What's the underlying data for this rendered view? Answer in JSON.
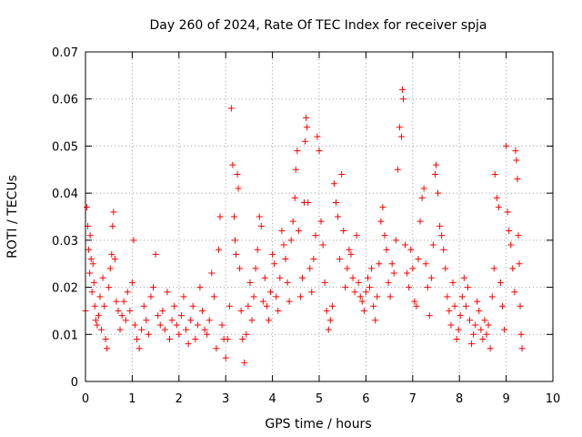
{
  "chart_data": {
    "type": "scatter",
    "title": "Day 260 of 2024, Rate Of TEC Index for receiver spja",
    "xlabel": "GPS time / hours",
    "ylabel": "ROTI / TECUs",
    "xlim": [
      0,
      10
    ],
    "ylim": [
      0,
      0.07
    ],
    "xticks": [
      0,
      1,
      2,
      3,
      4,
      5,
      6,
      7,
      8,
      9,
      10
    ],
    "yticks": [
      0,
      0.01,
      0.02,
      0.03,
      0.04,
      0.05,
      0.06,
      0.07
    ],
    "ytick_labels": [
      "0",
      "0.01",
      "0.02",
      "0.03",
      "0.04",
      "0.05",
      "0.06",
      "0.07"
    ],
    "grid": true,
    "marker": "+",
    "marker_color": "#ff0000",
    "series": [
      {
        "name": "ROTI",
        "points": [
          [
            0.0,
            0.015
          ],
          [
            0.03,
            0.037
          ],
          [
            0.05,
            0.033
          ],
          [
            0.07,
            0.028
          ],
          [
            0.09,
            0.023
          ],
          [
            0.1,
            0.031
          ],
          [
            0.12,
            0.026
          ],
          [
            0.14,
            0.019
          ],
          [
            0.16,
            0.025
          ],
          [
            0.18,
            0.021
          ],
          [
            0.2,
            0.016
          ],
          [
            0.22,
            0.013
          ],
          [
            0.25,
            0.012
          ],
          [
            0.28,
            0.014
          ],
          [
            0.31,
            0.018
          ],
          [
            0.34,
            0.011
          ],
          [
            0.37,
            0.022
          ],
          [
            0.4,
            0.016
          ],
          [
            0.43,
            0.009
          ],
          [
            0.46,
            0.007
          ],
          [
            0.5,
            0.02
          ],
          [
            0.53,
            0.024
          ],
          [
            0.56,
            0.027
          ],
          [
            0.58,
            0.033
          ],
          [
            0.6,
            0.036
          ],
          [
            0.63,
            0.026
          ],
          [
            0.66,
            0.017
          ],
          [
            0.7,
            0.015
          ],
          [
            0.74,
            0.011
          ],
          [
            0.78,
            0.014
          ],
          [
            0.82,
            0.017
          ],
          [
            0.86,
            0.013
          ],
          [
            0.9,
            0.019
          ],
          [
            0.95,
            0.015
          ],
          [
            1.0,
            0.021
          ],
          [
            1.03,
            0.03
          ],
          [
            1.06,
            0.012
          ],
          [
            1.1,
            0.009
          ],
          [
            1.15,
            0.007
          ],
          [
            1.2,
            0.011
          ],
          [
            1.25,
            0.016
          ],
          [
            1.3,
            0.013
          ],
          [
            1.35,
            0.01
          ],
          [
            1.4,
            0.018
          ],
          [
            1.45,
            0.02
          ],
          [
            1.5,
            0.027
          ],
          [
            1.55,
            0.014
          ],
          [
            1.6,
            0.012
          ],
          [
            1.65,
            0.015
          ],
          [
            1.7,
            0.011
          ],
          [
            1.75,
            0.019
          ],
          [
            1.8,
            0.009
          ],
          [
            1.85,
            0.013
          ],
          [
            1.9,
            0.016
          ],
          [
            1.95,
            0.012
          ],
          [
            2.0,
            0.01
          ],
          [
            2.05,
            0.014
          ],
          [
            2.1,
            0.018
          ],
          [
            2.15,
            0.011
          ],
          [
            2.2,
            0.008
          ],
          [
            2.25,
            0.013
          ],
          [
            2.3,
            0.016
          ],
          [
            2.35,
            0.009
          ],
          [
            2.4,
            0.012
          ],
          [
            2.45,
            0.02
          ],
          [
            2.5,
            0.015
          ],
          [
            2.55,
            0.011
          ],
          [
            2.6,
            0.01
          ],
          [
            2.65,
            0.013
          ],
          [
            2.7,
            0.023
          ],
          [
            2.75,
            0.018
          ],
          [
            2.8,
            0.007
          ],
          [
            2.85,
            0.028
          ],
          [
            2.88,
            0.035
          ],
          [
            2.92,
            0.012
          ],
          [
            2.96,
            0.009
          ],
          [
            3.0,
            0.005
          ],
          [
            3.04,
            0.009
          ],
          [
            3.08,
            0.016
          ],
          [
            3.12,
            0.058
          ],
          [
            3.15,
            0.046
          ],
          [
            3.18,
            0.035
          ],
          [
            3.2,
            0.03
          ],
          [
            3.22,
            0.027
          ],
          [
            3.25,
            0.044
          ],
          [
            3.27,
            0.041
          ],
          [
            3.3,
            0.024
          ],
          [
            3.33,
            0.015
          ],
          [
            3.36,
            0.009
          ],
          [
            3.4,
            0.004
          ],
          [
            3.44,
            0.01
          ],
          [
            3.48,
            0.016
          ],
          [
            3.52,
            0.021
          ],
          [
            3.56,
            0.013
          ],
          [
            3.6,
            0.018
          ],
          [
            3.64,
            0.024
          ],
          [
            3.68,
            0.028
          ],
          [
            3.72,
            0.035
          ],
          [
            3.76,
            0.033
          ],
          [
            3.8,
            0.017
          ],
          [
            3.84,
            0.022
          ],
          [
            3.88,
            0.016
          ],
          [
            3.92,
            0.013
          ],
          [
            3.96,
            0.019
          ],
          [
            4.0,
            0.027
          ],
          [
            4.04,
            0.025
          ],
          [
            4.08,
            0.018
          ],
          [
            4.12,
            0.015
          ],
          [
            4.16,
            0.022
          ],
          [
            4.2,
            0.032
          ],
          [
            4.24,
            0.029
          ],
          [
            4.28,
            0.026
          ],
          [
            4.32,
            0.021
          ],
          [
            4.36,
            0.017
          ],
          [
            4.4,
            0.03
          ],
          [
            4.44,
            0.034
          ],
          [
            4.48,
            0.039
          ],
          [
            4.5,
            0.045
          ],
          [
            4.53,
            0.049
          ],
          [
            4.56,
            0.032
          ],
          [
            4.6,
            0.018
          ],
          [
            4.64,
            0.022
          ],
          [
            4.68,
            0.038
          ],
          [
            4.7,
            0.051
          ],
          [
            4.72,
            0.056
          ],
          [
            4.74,
            0.054
          ],
          [
            4.76,
            0.038
          ],
          [
            4.8,
            0.024
          ],
          [
            4.84,
            0.019
          ],
          [
            4.88,
            0.026
          ],
          [
            4.92,
            0.031
          ],
          [
            4.96,
            0.052
          ],
          [
            5.0,
            0.049
          ],
          [
            5.04,
            0.034
          ],
          [
            5.08,
            0.029
          ],
          [
            5.12,
            0.021
          ],
          [
            5.16,
            0.015
          ],
          [
            5.2,
            0.011
          ],
          [
            5.24,
            0.013
          ],
          [
            5.28,
            0.016
          ],
          [
            5.32,
            0.042
          ],
          [
            5.36,
            0.038
          ],
          [
            5.4,
            0.035
          ],
          [
            5.44,
            0.026
          ],
          [
            5.48,
            0.044
          ],
          [
            5.52,
            0.032
          ],
          [
            5.56,
            0.02
          ],
          [
            5.6,
            0.024
          ],
          [
            5.64,
            0.028
          ],
          [
            5.68,
            0.027
          ],
          [
            5.72,
            0.022
          ],
          [
            5.76,
            0.019
          ],
          [
            5.8,
            0.031
          ],
          [
            5.84,
            0.021
          ],
          [
            5.88,
            0.018
          ],
          [
            5.92,
            0.017
          ],
          [
            5.96,
            0.015
          ],
          [
            6.0,
            0.019
          ],
          [
            6.04,
            0.022
          ],
          [
            6.08,
            0.02
          ],
          [
            6.12,
            0.024
          ],
          [
            6.16,
            0.016
          ],
          [
            6.2,
            0.013
          ],
          [
            6.24,
            0.018
          ],
          [
            6.28,
            0.025
          ],
          [
            6.32,
            0.034
          ],
          [
            6.36,
            0.037
          ],
          [
            6.4,
            0.031
          ],
          [
            6.44,
            0.028
          ],
          [
            6.48,
            0.021
          ],
          [
            6.52,
            0.018
          ],
          [
            6.56,
            0.025
          ],
          [
            6.6,
            0.023
          ],
          [
            6.64,
            0.03
          ],
          [
            6.68,
            0.045
          ],
          [
            6.72,
            0.054
          ],
          [
            6.76,
            0.052
          ],
          [
            6.78,
            0.062
          ],
          [
            6.8,
            0.06
          ],
          [
            6.84,
            0.029
          ],
          [
            6.88,
            0.023
          ],
          [
            6.92,
            0.02
          ],
          [
            6.96,
            0.028
          ],
          [
            7.0,
            0.024
          ],
          [
            7.04,
            0.017
          ],
          [
            7.08,
            0.016
          ],
          [
            7.12,
            0.026
          ],
          [
            7.16,
            0.034
          ],
          [
            7.2,
            0.039
          ],
          [
            7.24,
            0.041
          ],
          [
            7.28,
            0.025
          ],
          [
            7.32,
            0.02
          ],
          [
            7.36,
            0.014
          ],
          [
            7.4,
            0.022
          ],
          [
            7.44,
            0.029
          ],
          [
            7.48,
            0.044
          ],
          [
            7.5,
            0.046
          ],
          [
            7.54,
            0.04
          ],
          [
            7.58,
            0.033
          ],
          [
            7.62,
            0.031
          ],
          [
            7.66,
            0.028
          ],
          [
            7.7,
            0.024
          ],
          [
            7.74,
            0.018
          ],
          [
            7.78,
            0.015
          ],
          [
            7.82,
            0.012
          ],
          [
            7.86,
            0.021
          ],
          [
            7.9,
            0.016
          ],
          [
            7.94,
            0.009
          ],
          [
            7.98,
            0.011
          ],
          [
            8.02,
            0.014
          ],
          [
            8.06,
            0.018
          ],
          [
            8.1,
            0.022
          ],
          [
            8.14,
            0.016
          ],
          [
            8.18,
            0.02
          ],
          [
            8.22,
            0.013
          ],
          [
            8.26,
            0.008
          ],
          [
            8.3,
            0.01
          ],
          [
            8.34,
            0.012
          ],
          [
            8.38,
            0.017
          ],
          [
            8.42,
            0.015
          ],
          [
            8.46,
            0.011
          ],
          [
            8.5,
            0.009
          ],
          [
            8.54,
            0.013
          ],
          [
            8.58,
            0.01
          ],
          [
            8.62,
            0.012
          ],
          [
            8.66,
            0.007
          ],
          [
            8.7,
            0.018
          ],
          [
            8.74,
            0.024
          ],
          [
            8.76,
            0.044
          ],
          [
            8.8,
            0.039
          ],
          [
            8.84,
            0.037
          ],
          [
            8.88,
            0.021
          ],
          [
            8.92,
            0.016
          ],
          [
            8.96,
            0.011
          ],
          [
            9.0,
            0.05
          ],
          [
            9.03,
            0.036
          ],
          [
            9.06,
            0.032
          ],
          [
            9.1,
            0.029
          ],
          [
            9.14,
            0.024
          ],
          [
            9.18,
            0.019
          ],
          [
            9.2,
            0.049
          ],
          [
            9.22,
            0.047
          ],
          [
            9.24,
            0.043
          ],
          [
            9.26,
            0.031
          ],
          [
            9.28,
            0.025
          ],
          [
            9.3,
            0.016
          ],
          [
            9.32,
            0.01
          ],
          [
            9.34,
            0.007
          ]
        ]
      }
    ]
  }
}
